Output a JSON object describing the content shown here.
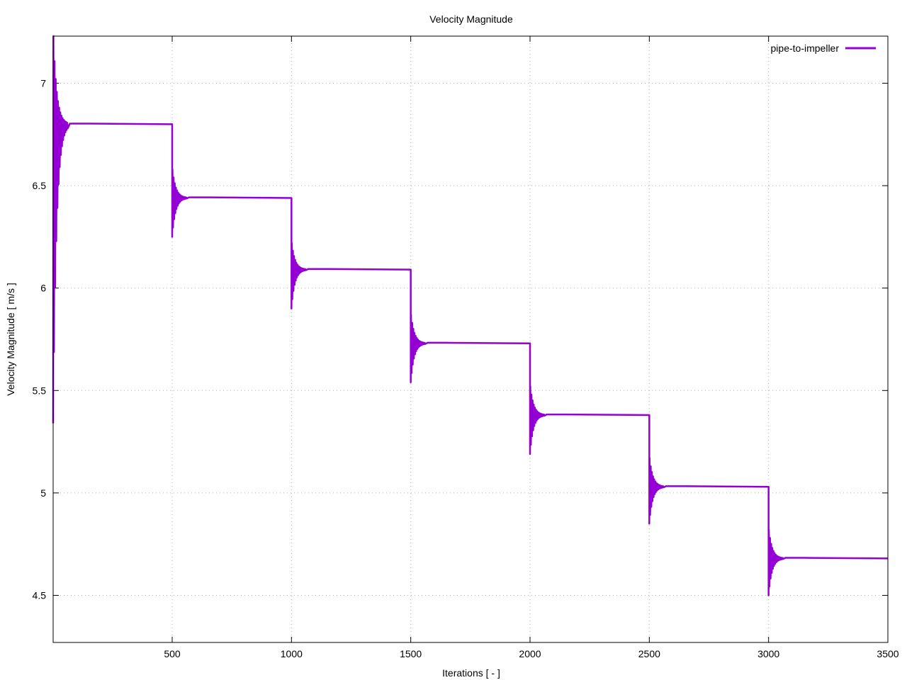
{
  "chart_data": {
    "type": "line",
    "title": "Velocity Magnitude",
    "xlabel": "Iterations [ - ]",
    "ylabel": "Velocity Magnitude [ m/s ]",
    "xlim": [
      1,
      3500
    ],
    "ylim": [
      4.27,
      7.23
    ],
    "x_ticks": [
      500,
      1000,
      1500,
      2000,
      2500,
      3000,
      3500
    ],
    "y_ticks": [
      4.5,
      5,
      5.5,
      6,
      6.5,
      7
    ],
    "grid": true,
    "legend_position": "top-right",
    "series": [
      {
        "name": "pipe-to-impeller",
        "color": "#9400d3",
        "segments": [
          {
            "start": 1,
            "end": 500,
            "level": 6.8,
            "overshoot_high": 7.23,
            "overshoot_low": 5.34
          },
          {
            "start": 500,
            "end": 1000,
            "level": 6.44,
            "overshoot_high": 6.58,
            "overshoot_low": 6.25
          },
          {
            "start": 1000,
            "end": 1500,
            "level": 6.09,
            "overshoot_high": 6.22,
            "overshoot_low": 5.9
          },
          {
            "start": 1500,
            "end": 2000,
            "level": 5.73,
            "overshoot_high": 5.87,
            "overshoot_low": 5.54
          },
          {
            "start": 2000,
            "end": 2500,
            "level": 5.38,
            "overshoot_high": 5.52,
            "overshoot_low": 5.19
          },
          {
            "start": 2500,
            "end": 3000,
            "level": 5.03,
            "overshoot_high": 5.17,
            "overshoot_low": 4.85
          },
          {
            "start": 3000,
            "end": 3500,
            "level": 4.68,
            "overshoot_high": 4.82,
            "overshoot_low": 4.5
          }
        ]
      }
    ]
  }
}
